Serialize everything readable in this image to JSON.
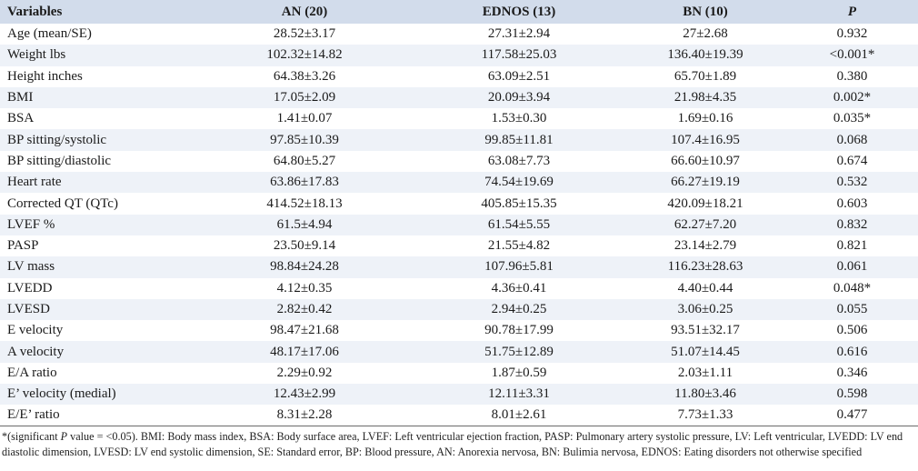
{
  "table": {
    "headers": [
      "Variables",
      "AN (20)",
      "EDNOS (13)",
      "BN (10)",
      "P"
    ],
    "rows": [
      [
        "Age (mean/SE)",
        "28.52±3.17",
        "27.31±2.94",
        "27±2.68",
        "0.932"
      ],
      [
        "Weight lbs",
        "102.32±14.82",
        "117.58±25.03",
        "136.40±19.39",
        "<0.001*"
      ],
      [
        "Height inches",
        "64.38±3.26",
        "63.09±2.51",
        "65.70±1.89",
        "0.380"
      ],
      [
        "BMI",
        "17.05±2.09",
        "20.09±3.94",
        "21.98±4.35",
        "0.002*"
      ],
      [
        "BSA",
        "1.41±0.07",
        "1.53±0.30",
        "1.69±0.16",
        "0.035*"
      ],
      [
        "BP sitting/systolic",
        "97.85±10.39",
        "99.85±11.81",
        "107.4±16.95",
        "0.068"
      ],
      [
        "BP sitting/diastolic",
        "64.80±5.27",
        "63.08±7.73",
        "66.60±10.97",
        "0.674"
      ],
      [
        "Heart rate",
        "63.86±17.83",
        "74.54±19.69",
        "66.27±19.19",
        "0.532"
      ],
      [
        "Corrected QT (QTc)",
        "414.52±18.13",
        "405.85±15.35",
        "420.09±18.21",
        "0.603"
      ],
      [
        "LVEF %",
        "61.5±4.94",
        "61.54±5.55",
        "62.27±7.20",
        "0.832"
      ],
      [
        "PASP",
        "23.50±9.14",
        "21.55±4.82",
        "23.14±2.79",
        "0.821"
      ],
      [
        "LV mass",
        "98.84±24.28",
        "107.96±5.81",
        "116.23±28.63",
        "0.061"
      ],
      [
        "LVEDD",
        "4.12±0.35",
        "4.36±0.41",
        "4.40±0.44",
        "0.048*"
      ],
      [
        "LVESD",
        "2.82±0.42",
        "2.94±0.25",
        "3.06±0.25",
        "0.055"
      ],
      [
        "E velocity",
        "98.47±21.68",
        "90.78±17.99",
        "93.51±32.17",
        "0.506"
      ],
      [
        "A velocity",
        "48.17±17.06",
        "51.75±12.89",
        "51.07±14.45",
        "0.616"
      ],
      [
        "E/A ratio",
        "2.29±0.92",
        "1.87±0.59",
        "2.03±1.11",
        "0.346"
      ],
      [
        "E’ velocity (medial)",
        "12.43±2.99",
        "12.11±3.31",
        "11.80±3.46",
        "0.598"
      ],
      [
        "E/E’ ratio",
        "8.31±2.28",
        "8.01±2.61",
        "7.73±1.33",
        "0.477"
      ]
    ]
  },
  "footnote": {
    "prefix": "*(significant ",
    "italic": "P",
    "rest": " value = <0.05). BMI: Body mass index, BSA: Body surface area, LVEF: Left ventricular ejection fraction, PASP: Pulmonary artery systolic pressure, LV: Left ventricular, LVEDD: LV end diastolic dimension, LVESD: LV end systolic dimension, SE: Standard error, BP: Blood pressure, AN: Anorexia nervosa, BN: Bulimia nervosa, EDNOS: Eating disorders not otherwise specified"
  }
}
